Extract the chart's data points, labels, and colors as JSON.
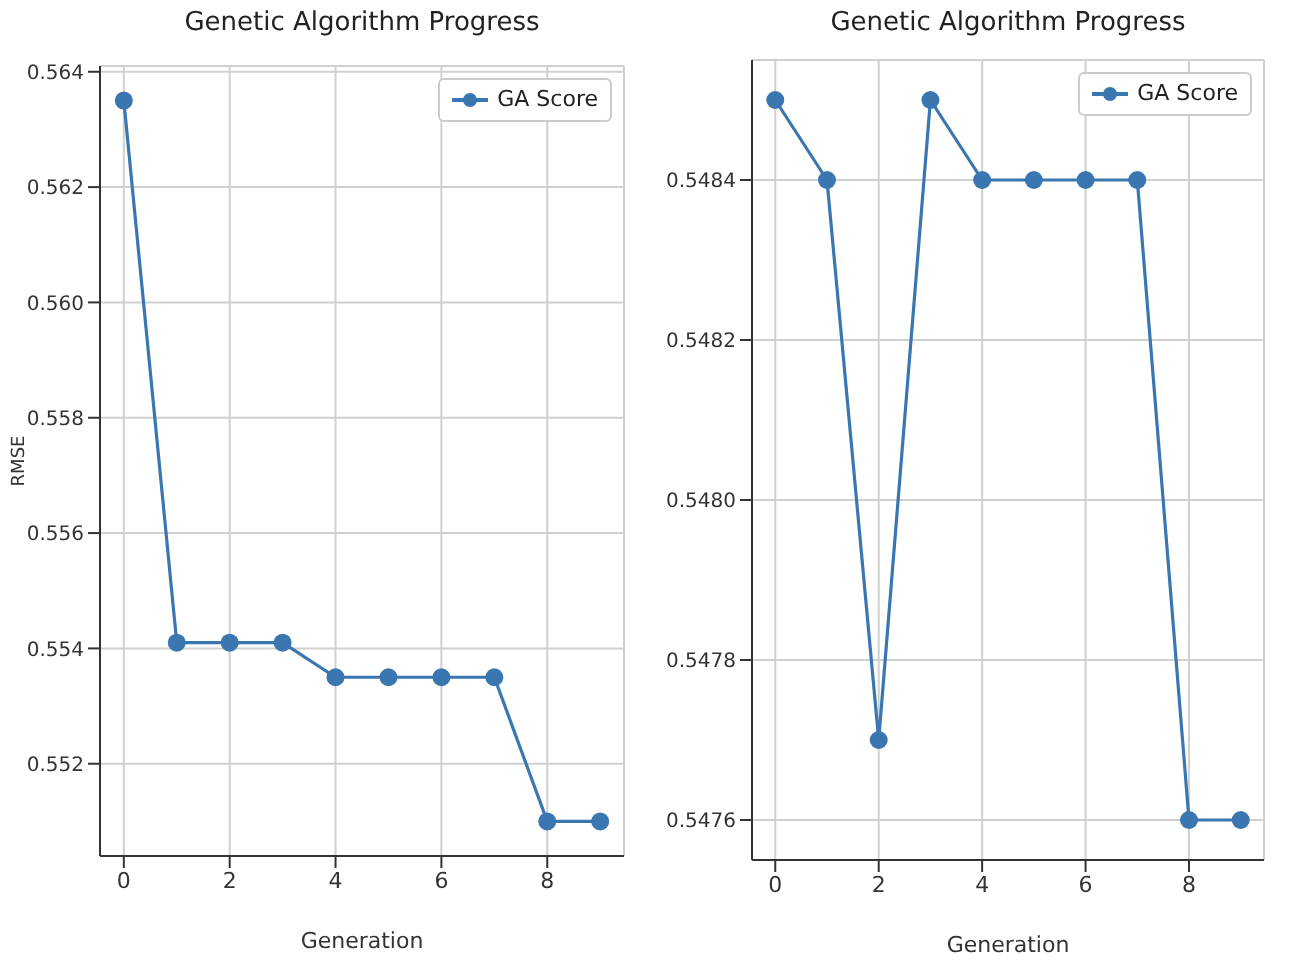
{
  "chart_data": [
    {
      "type": "line",
      "title": "Genetic Algorithm Progress",
      "xlabel": "Generation",
      "ylabel": "RMSE",
      "x": [
        0,
        1,
        2,
        3,
        4,
        5,
        6,
        7,
        8,
        9
      ],
      "series": [
        {
          "name": "GA Score",
          "color": "#3a76b0",
          "values": [
            0.5635,
            0.5541,
            0.5541,
            0.5541,
            0.5535,
            0.5535,
            0.5535,
            0.5535,
            0.551,
            0.551
          ]
        }
      ],
      "xlim": [
        -0.45,
        9.45
      ],
      "xticks": [
        0,
        2,
        4,
        6,
        8
      ],
      "ylim": [
        0.5504,
        0.5641
      ],
      "yticks": [
        0.552,
        0.554,
        0.556,
        0.558,
        {
          "value": 0.56,
          "label": "0.560"
        },
        0.562,
        0.564
      ],
      "grid": true,
      "legend": "top right",
      "marker": "circle"
    },
    {
      "type": "line",
      "title": "Genetic Algorithm Progress",
      "xlabel": "Generation",
      "x": [
        0,
        1,
        2,
        3,
        4,
        5,
        6,
        7,
        8,
        9
      ],
      "series": [
        {
          "name": "GA Score",
          "color": "#3a76b0",
          "values": [
            0.5485,
            0.5484,
            0.5477,
            0.5485,
            0.5484,
            0.5484,
            0.5484,
            0.5484,
            0.5476,
            0.5476
          ]
        }
      ],
      "xlim": [
        -0.45,
        9.45
      ],
      "xticks": [
        0,
        2,
        4,
        6,
        8
      ],
      "ylim": [
        0.54755,
        0.54855
      ],
      "yticks": [
        0.5476,
        0.5478,
        {
          "value": 0.548,
          "label": "0.5480"
        },
        0.5482,
        0.5484
      ],
      "grid": true,
      "legend": "top right",
      "marker": "circle"
    }
  ]
}
